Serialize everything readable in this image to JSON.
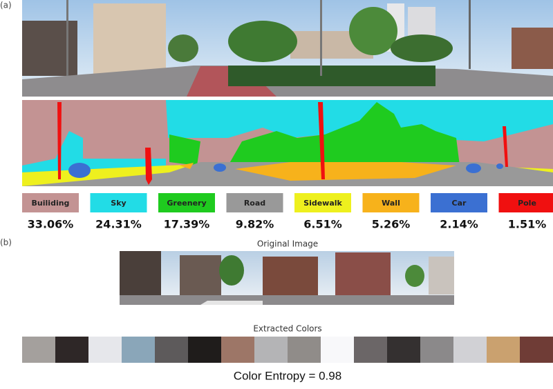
{
  "panel_a": {
    "label": "(a)",
    "classes": [
      {
        "name": "Builiding",
        "percent": "33.06%",
        "color": "#c39393"
      },
      {
        "name": "Sky",
        "percent": "24.31%",
        "color": "#22dce6"
      },
      {
        "name": "Greenery",
        "percent": "17.39%",
        "color": "#1fcb1f"
      },
      {
        "name": "Road",
        "percent": "9.82%",
        "color": "#999999"
      },
      {
        "name": "Sidewalk",
        "percent": "6.51%",
        "color": "#eef01e"
      },
      {
        "name": "Wall",
        "percent": "5.26%",
        "color": "#f7b21b"
      },
      {
        "name": "Car",
        "percent": "2.14%",
        "color": "#3b70d2"
      },
      {
        "name": "Pole",
        "percent": "1.51%",
        "color": "#f01010"
      }
    ]
  },
  "panel_b": {
    "label": "(b)",
    "image_title": "Original Image",
    "colors_title": "Extracted Colors",
    "colors": [
      "#a4a09d",
      "#2e2727",
      "#e6e7eb",
      "#8aa6b9",
      "#5d5a5b",
      "#1f1c1b",
      "#9d7667",
      "#b4b4b6",
      "#908c89",
      "#f8f8fa",
      "#6b6667",
      "#343030",
      "#8b898a",
      "#d1d1d5",
      "#caa16f",
      "#6f3c36"
    ],
    "entropy": "Color Entropy = 0.98"
  }
}
